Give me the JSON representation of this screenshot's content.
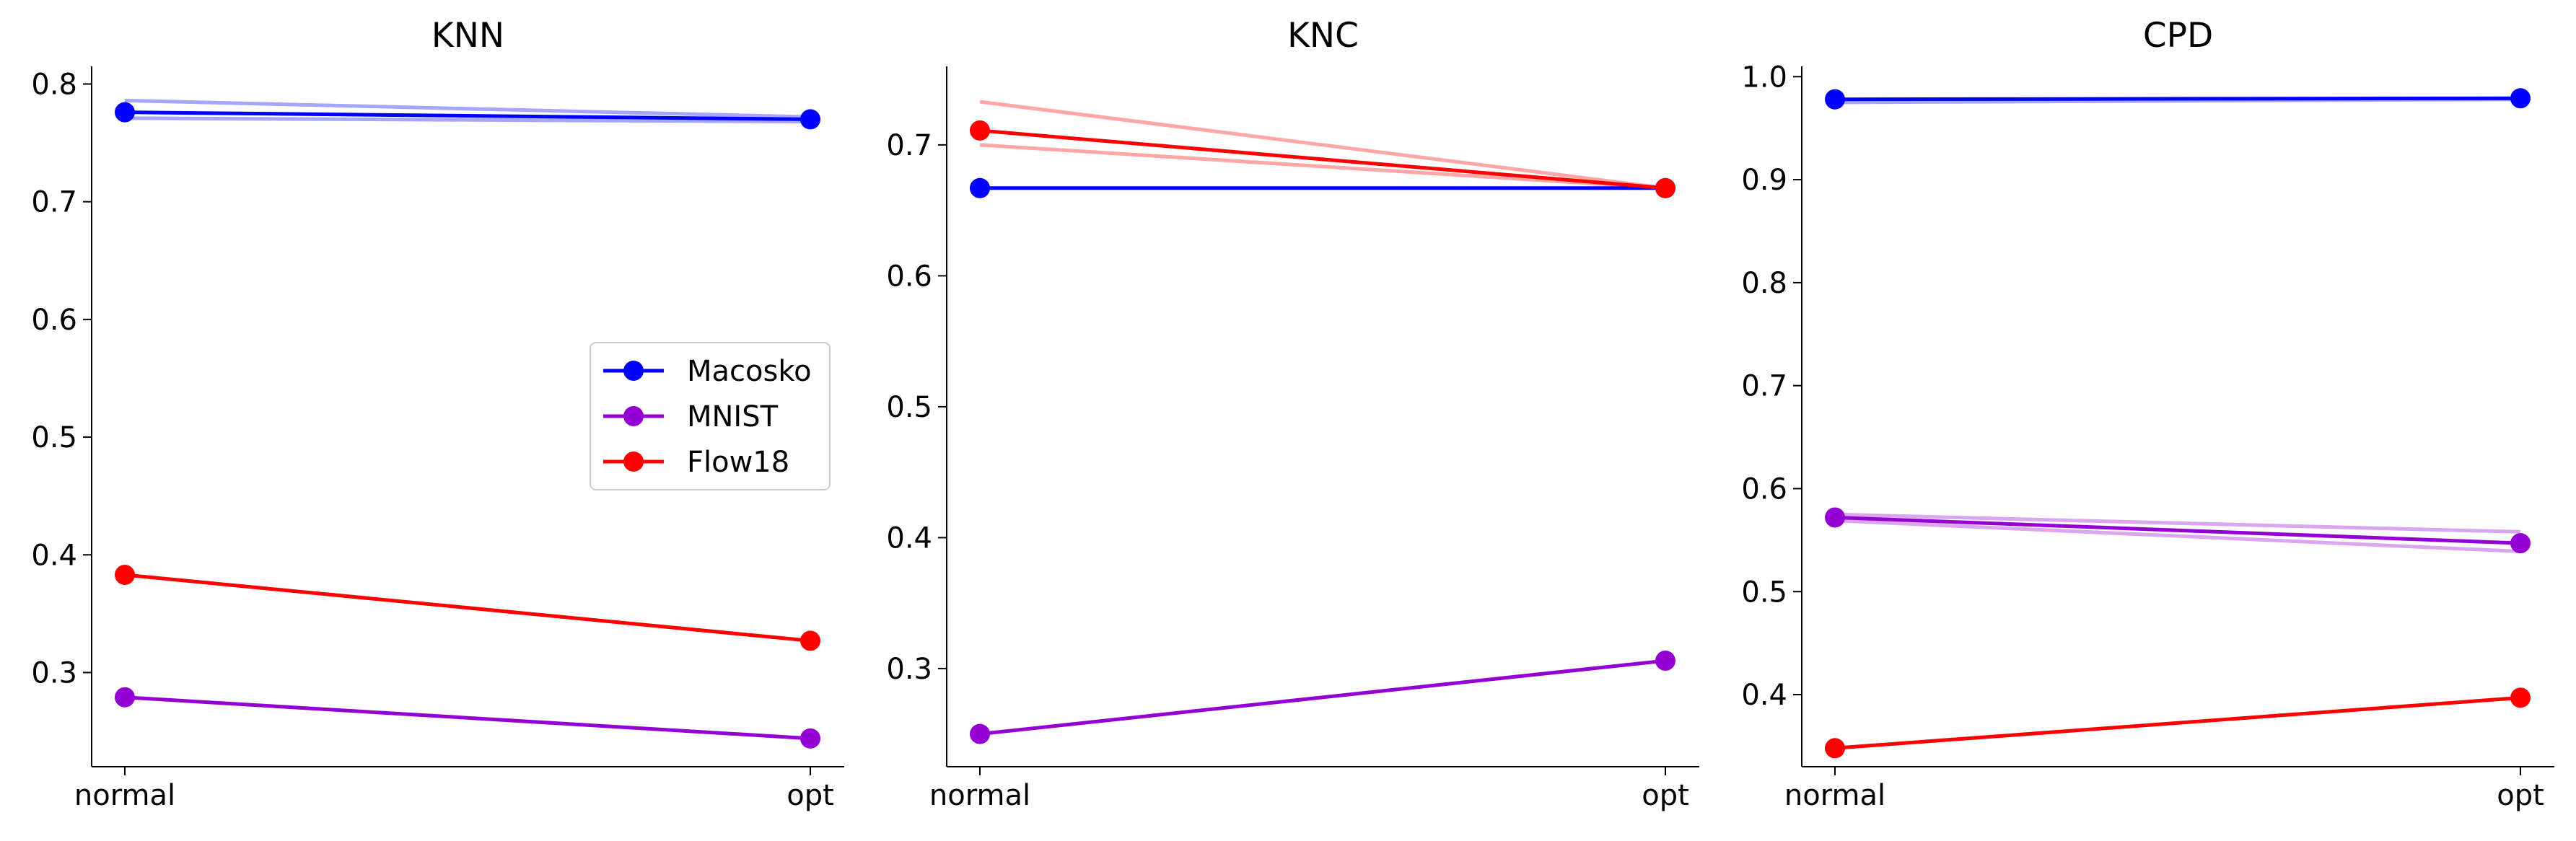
{
  "chart_data": [
    {
      "type": "line",
      "title": "KNN",
      "categories": [
        "normal",
        "opt"
      ],
      "ylim": [
        0.22,
        0.815
      ],
      "yticks": [
        "0.3",
        "0.4",
        "0.5",
        "0.6",
        "0.7",
        "0.8"
      ],
      "series": [
        {
          "name": "Macosko",
          "color": "#0000ff",
          "values": [
            0.776,
            0.77
          ],
          "faint": [
            [
              0.786,
              0.772
            ],
            [
              0.771,
              0.768
            ]
          ]
        },
        {
          "name": "MNIST",
          "color": "#9400d3",
          "values": [
            0.279,
            0.244
          ],
          "faint": []
        },
        {
          "name": "Flow18",
          "color": "#ff0000",
          "values": [
            0.383,
            0.327
          ],
          "faint": []
        }
      ],
      "legend": "center-right"
    },
    {
      "type": "line",
      "title": "KNC",
      "categories": [
        "normal",
        "opt"
      ],
      "ylim": [
        0.225,
        0.76
      ],
      "yticks": [
        "0.3",
        "0.4",
        "0.5",
        "0.6",
        "0.7"
      ],
      "series": [
        {
          "name": "Macosko",
          "color": "#0000ff",
          "values": [
            0.667,
            0.667
          ],
          "faint": []
        },
        {
          "name": "MNIST",
          "color": "#9400d3",
          "values": [
            0.25,
            0.306
          ],
          "faint": []
        },
        {
          "name": "Flow18",
          "color": "#ff0000",
          "values": [
            0.711,
            0.667
          ],
          "faint": [
            [
              0.733,
              0.667
            ],
            [
              0.7,
              0.667
            ]
          ]
        }
      ]
    },
    {
      "type": "line",
      "title": "CPD",
      "categories": [
        "normal",
        "opt"
      ],
      "ylim": [
        0.33,
        1.01
      ],
      "yticks": [
        "0.4",
        "0.5",
        "0.6",
        "0.7",
        "0.8",
        "0.9",
        "1.0"
      ],
      "series": [
        {
          "name": "Macosko",
          "color": "#0000ff",
          "values": [
            0.978,
            0.979
          ],
          "faint": [
            [
              0.975,
              0.978
            ]
          ]
        },
        {
          "name": "MNIST",
          "color": "#9400d3",
          "values": [
            0.572,
            0.547
          ],
          "faint": [
            [
              0.575,
              0.558
            ],
            [
              0.569,
              0.539
            ]
          ]
        },
        {
          "name": "Flow18",
          "color": "#ff0000",
          "values": [
            0.348,
            0.397
          ],
          "faint": []
        }
      ]
    }
  ]
}
